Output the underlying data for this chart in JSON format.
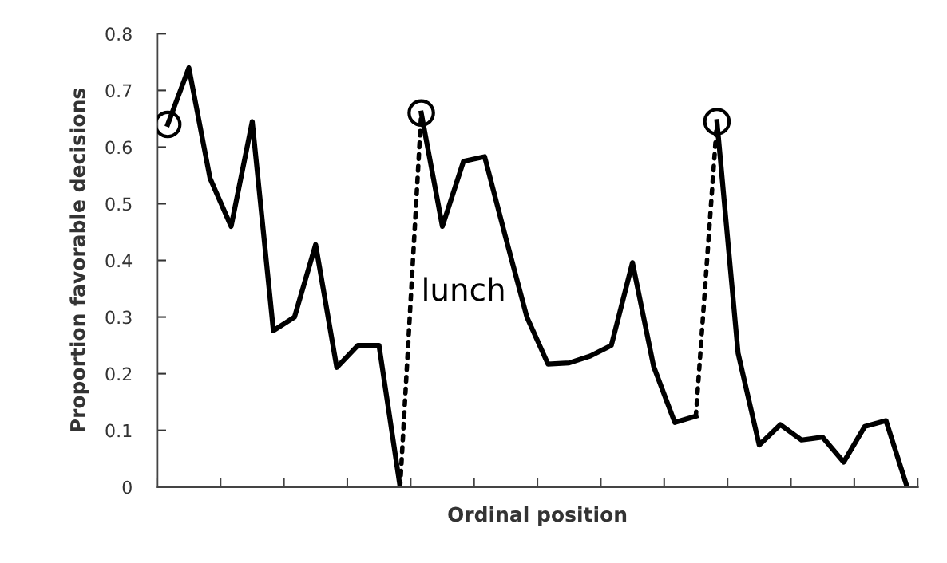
{
  "chart_data": {
    "type": "line",
    "xlabel": "Ordinal position",
    "ylabel": "Proportion favorable decisions",
    "categories": [
      null,
      null,
      null,
      null,
      null,
      null,
      null,
      null,
      null,
      null,
      null,
      null,
      null,
      null,
      null,
      null,
      null,
      null,
      null,
      null,
      null,
      null,
      null,
      null,
      null,
      null,
      null,
      null,
      null,
      null,
      null,
      null,
      null,
      null,
      null,
      null
    ],
    "ylim": [
      0,
      0.8
    ],
    "yticks": [
      0,
      0.1,
      0.2,
      0.3,
      0.4,
      0.5,
      0.6,
      0.7,
      0.8
    ],
    "grid": false,
    "series": [
      {
        "type": "line",
        "color": "#000000",
        "line_style": "solid",
        "values": [
          0.64,
          0.74,
          0.545,
          0.46,
          0.645,
          0.276,
          0.3,
          0.428,
          0.211,
          0.25,
          0.25,
          0,
          null,
          null,
          null,
          null,
          null,
          null,
          null,
          null,
          null,
          null,
          null,
          null,
          null,
          null,
          null,
          null,
          null,
          null,
          null,
          null,
          null,
          null,
          null,
          null
        ]
      },
      {
        "type": "line",
        "color": "#000000",
        "line_style": "solid",
        "values": [
          null,
          null,
          null,
          null,
          null,
          null,
          null,
          null,
          null,
          null,
          null,
          null,
          0.66,
          0.46,
          0.575,
          0.583,
          0.44,
          0.3,
          0.217,
          0.219,
          0.231,
          0.25,
          0.396,
          0.213,
          0.114,
          0.125,
          null,
          null,
          null,
          null,
          null,
          null,
          null,
          null,
          null,
          null
        ]
      },
      {
        "type": "line",
        "color": "#000000",
        "line_style": "solid",
        "values": [
          null,
          null,
          null,
          null,
          null,
          null,
          null,
          null,
          null,
          null,
          null,
          null,
          null,
          null,
          null,
          null,
          null,
          null,
          null,
          null,
          null,
          null,
          null,
          null,
          null,
          null,
          0.645,
          0.236,
          0.074,
          0.11,
          0.083,
          0.088,
          0.044,
          0.107,
          0.117,
          0
        ]
      },
      {
        "type": "line",
        "color": "#000000",
        "line_style": "dotted",
        "values": [
          null,
          null,
          null,
          null,
          null,
          null,
          null,
          null,
          null,
          null,
          null,
          0,
          0.66,
          null,
          null,
          null,
          null,
          null,
          null,
          null,
          null,
          null,
          null,
          null,
          null,
          0.125,
          0.645,
          null,
          null,
          null,
          null,
          null,
          null,
          null,
          null,
          null
        ]
      },
      {
        "type": "scatter",
        "color": "#000000",
        "marker": "circle",
        "values": [
          0.64,
          null,
          null,
          null,
          null,
          null,
          null,
          null,
          null,
          null,
          null,
          null,
          0.66,
          null,
          null,
          null,
          null,
          null,
          null,
          null,
          null,
          null,
          null,
          null,
          null,
          null,
          0.645,
          null,
          null,
          null,
          null,
          null,
          null,
          null,
          null,
          null
        ]
      }
    ],
    "annotations": [
      "lunch"
    ]
  }
}
